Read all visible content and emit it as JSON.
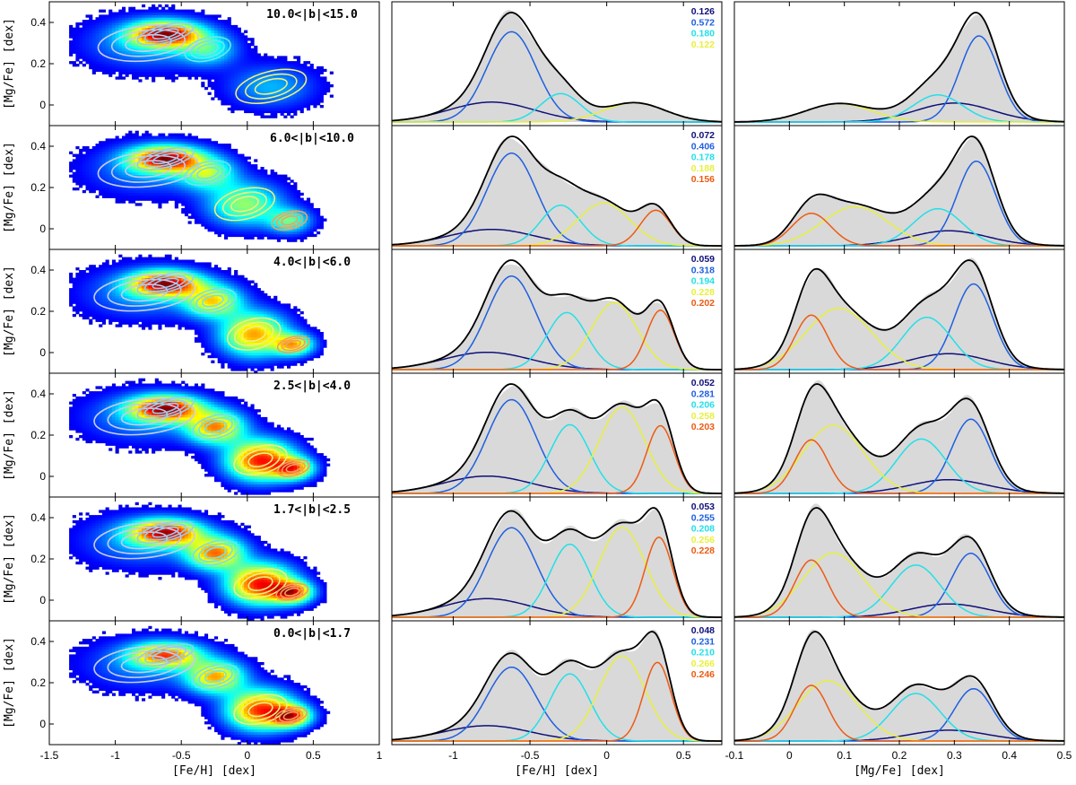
{
  "chart_data": {
    "type": "scatter",
    "description_free": true,
    "component_colors": [
      "#10107a",
      "#1f5fe0",
      "#22e0e8",
      "#e8f03a",
      "#ee5a12"
    ],
    "total_color": "#000000",
    "data_fill_color": "#d9d9d9",
    "columns": [
      {
        "xlabel": "[Fe/H]  [dex]",
        "ylabel": "[Mg/Fe] [dex]",
        "xlim": [
          -1.5,
          1.0
        ],
        "ylim": [
          -0.1,
          0.5
        ],
        "xticks": [
          "-1.5",
          "-1",
          "-0.5",
          "0",
          "0.5",
          "1"
        ],
        "yticks": [
          "0",
          "0.2",
          "0.4"
        ]
      },
      {
        "xlabel": "[Fe/H]  [dex]",
        "xlim": [
          -1.4,
          0.75
        ],
        "xticks": [
          "-1",
          "-0.5",
          "0",
          "0.5"
        ]
      },
      {
        "xlabel": "[Mg/Fe]  [dex]",
        "xlim": [
          -0.1,
          0.5
        ],
        "xticks": [
          "-0.1",
          "0",
          "0.1",
          "0.2",
          "0.3",
          "0.4",
          "0.5"
        ]
      }
    ],
    "panels": [
      {
        "bin": "10.0<|b|<15.0",
        "weights": [
          "0.126",
          "0.572",
          "0.180",
          "0.122"
        ],
        "components": [
          {
            "feh": -0.75,
            "feh_sig": 0.28,
            "mgfe": 0.3,
            "mgfe_sig": 0.07
          },
          {
            "feh": -0.62,
            "feh_sig": 0.16,
            "mgfe": 0.345,
            "mgfe_sig": 0.035
          },
          {
            "feh": -0.3,
            "feh_sig": 0.13,
            "mgfe": 0.27,
            "mgfe_sig": 0.045
          },
          {
            "feh": 0.18,
            "feh_sig": 0.2,
            "mgfe": 0.09,
            "mgfe_sig": 0.06
          }
        ]
      },
      {
        "bin": "6.0<|b|<10.0",
        "weights": [
          "0.072",
          "0.406",
          "0.178",
          "0.188",
          "0.156"
        ],
        "components": [
          {
            "feh": -0.75,
            "feh_sig": 0.28,
            "mgfe": 0.29,
            "mgfe_sig": 0.07
          },
          {
            "feh": -0.62,
            "feh_sig": 0.16,
            "mgfe": 0.34,
            "mgfe_sig": 0.035
          },
          {
            "feh": -0.3,
            "feh_sig": 0.13,
            "mgfe": 0.27,
            "mgfe_sig": 0.045
          },
          {
            "feh": -0.02,
            "feh_sig": 0.17,
            "mgfe": 0.12,
            "mgfe_sig": 0.06
          },
          {
            "feh": 0.32,
            "feh_sig": 0.1,
            "mgfe": 0.04,
            "mgfe_sig": 0.035
          }
        ]
      },
      {
        "bin": "4.0<|b|<6.0",
        "weights": [
          "0.059",
          "0.318",
          "0.194",
          "0.228",
          "0.202"
        ],
        "components": [
          {
            "feh": -0.78,
            "feh_sig": 0.28,
            "mgfe": 0.29,
            "mgfe_sig": 0.07
          },
          {
            "feh": -0.62,
            "feh_sig": 0.16,
            "mgfe": 0.335,
            "mgfe_sig": 0.035
          },
          {
            "feh": -0.26,
            "feh_sig": 0.13,
            "mgfe": 0.25,
            "mgfe_sig": 0.045
          },
          {
            "feh": 0.05,
            "feh_sig": 0.15,
            "mgfe": 0.09,
            "mgfe_sig": 0.06
          },
          {
            "feh": 0.35,
            "feh_sig": 0.09,
            "mgfe": 0.04,
            "mgfe_sig": 0.03
          }
        ]
      },
      {
        "bin": "2.5<|b|<4.0",
        "weights": [
          "0.052",
          "0.281",
          "0.206",
          "0.258",
          "0.203"
        ],
        "components": [
          {
            "feh": -0.78,
            "feh_sig": 0.28,
            "mgfe": 0.29,
            "mgfe_sig": 0.07
          },
          {
            "feh": -0.62,
            "feh_sig": 0.16,
            "mgfe": 0.33,
            "mgfe_sig": 0.035
          },
          {
            "feh": -0.24,
            "feh_sig": 0.13,
            "mgfe": 0.24,
            "mgfe_sig": 0.045
          },
          {
            "feh": 0.1,
            "feh_sig": 0.15,
            "mgfe": 0.08,
            "mgfe_sig": 0.055
          },
          {
            "feh": 0.35,
            "feh_sig": 0.09,
            "mgfe": 0.04,
            "mgfe_sig": 0.03
          }
        ]
      },
      {
        "bin": "1.7<|b|<2.5",
        "weights": [
          "0.053",
          "0.255",
          "0.208",
          "0.256",
          "0.228"
        ],
        "components": [
          {
            "feh": -0.78,
            "feh_sig": 0.28,
            "mgfe": 0.29,
            "mgfe_sig": 0.07
          },
          {
            "feh": -0.62,
            "feh_sig": 0.16,
            "mgfe": 0.33,
            "mgfe_sig": 0.035
          },
          {
            "feh": -0.24,
            "feh_sig": 0.13,
            "mgfe": 0.23,
            "mgfe_sig": 0.045
          },
          {
            "feh": 0.1,
            "feh_sig": 0.15,
            "mgfe": 0.08,
            "mgfe_sig": 0.055
          },
          {
            "feh": 0.34,
            "feh_sig": 0.09,
            "mgfe": 0.04,
            "mgfe_sig": 0.03
          }
        ]
      },
      {
        "bin": "0.0<|b|<1.7",
        "weights": [
          "0.048",
          "0.231",
          "0.210",
          "0.266",
          "0.246"
        ],
        "components": [
          {
            "feh": -0.78,
            "feh_sig": 0.28,
            "mgfe": 0.29,
            "mgfe_sig": 0.07
          },
          {
            "feh": -0.62,
            "feh_sig": 0.16,
            "mgfe": 0.335,
            "mgfe_sig": 0.035
          },
          {
            "feh": -0.24,
            "feh_sig": 0.13,
            "mgfe": 0.23,
            "mgfe_sig": 0.045
          },
          {
            "feh": 0.1,
            "feh_sig": 0.15,
            "mgfe": 0.07,
            "mgfe_sig": 0.055
          },
          {
            "feh": 0.33,
            "feh_sig": 0.09,
            "mgfe": 0.04,
            "mgfe_sig": 0.03
          }
        ]
      }
    ]
  }
}
